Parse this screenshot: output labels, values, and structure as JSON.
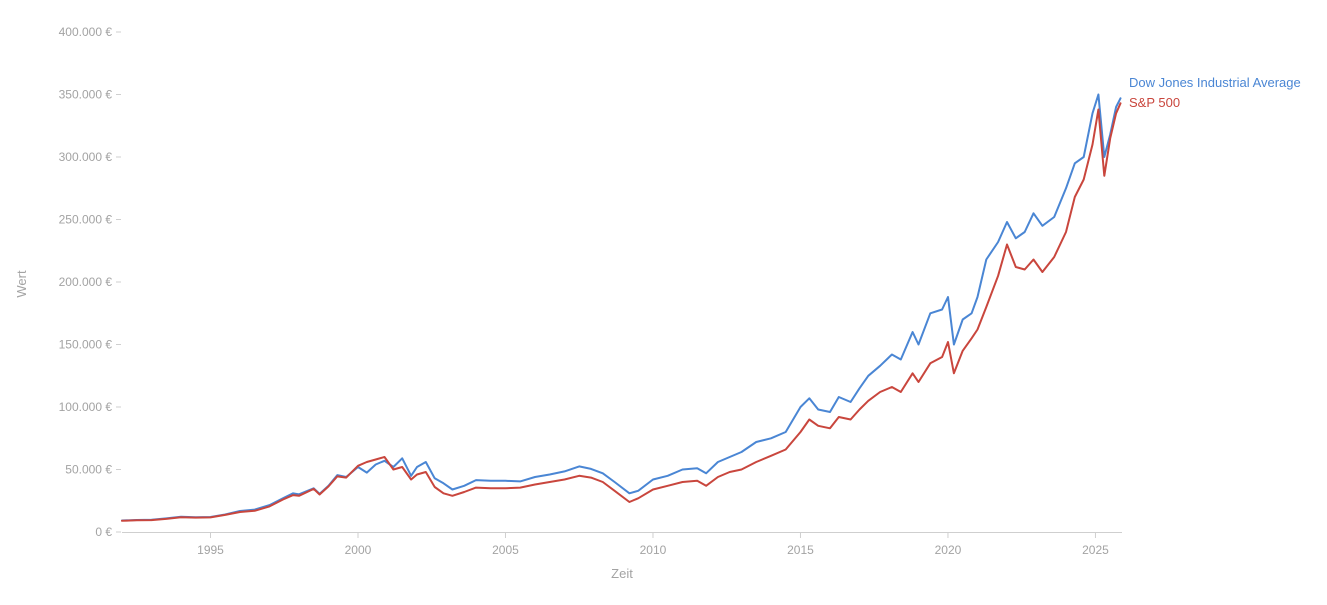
{
  "chart_data": {
    "type": "line",
    "title": "",
    "xlabel": "Zeit",
    "ylabel": "Wert",
    "xlim": [
      1992.0,
      2025.9
    ],
    "ylim": [
      0,
      400000
    ],
    "grid": false,
    "x_ticks": [
      1995,
      2000,
      2005,
      2010,
      2015,
      2020,
      2025
    ],
    "y_ticks": [
      0,
      50000,
      100000,
      150000,
      200000,
      250000,
      300000,
      350000,
      400000
    ],
    "y_tick_labels": [
      "0 €",
      "50.000 €",
      "100.000 €",
      "150.000 €",
      "200.000 €",
      "250.000 €",
      "300.000 €",
      "350.000 €",
      "400.000 €"
    ],
    "legend_placement": "right, at line ends",
    "series": [
      {
        "name": "Dow Jones Industrial Average",
        "color": "#4a86d4",
        "points": [
          [
            1992.0,
            9200
          ],
          [
            1992.5,
            9600
          ],
          [
            1993.0,
            9800
          ],
          [
            1993.5,
            10900
          ],
          [
            1994.0,
            12200
          ],
          [
            1994.5,
            11800
          ],
          [
            1995.0,
            12000
          ],
          [
            1995.5,
            14000
          ],
          [
            1996.0,
            16800
          ],
          [
            1996.5,
            17900
          ],
          [
            1997.0,
            21500
          ],
          [
            1997.5,
            27500
          ],
          [
            1997.8,
            31000
          ],
          [
            1998.0,
            30200
          ],
          [
            1998.5,
            35000
          ],
          [
            1998.7,
            30500
          ],
          [
            1999.0,
            37000
          ],
          [
            1999.3,
            45500
          ],
          [
            1999.6,
            44000
          ],
          [
            2000.0,
            52000
          ],
          [
            2000.3,
            47500
          ],
          [
            2000.6,
            54000
          ],
          [
            2000.9,
            57000
          ],
          [
            2001.2,
            52000
          ],
          [
            2001.5,
            59000
          ],
          [
            2001.8,
            45000
          ],
          [
            2002.0,
            52000
          ],
          [
            2002.3,
            56000
          ],
          [
            2002.6,
            43000
          ],
          [
            2002.9,
            39000
          ],
          [
            2003.2,
            34000
          ],
          [
            2003.6,
            37000
          ],
          [
            2004.0,
            41500
          ],
          [
            2004.5,
            41000
          ],
          [
            2005.0,
            41000
          ],
          [
            2005.5,
            40500
          ],
          [
            2006.0,
            44000
          ],
          [
            2006.5,
            46000
          ],
          [
            2007.0,
            48500
          ],
          [
            2007.5,
            52500
          ],
          [
            2007.9,
            50500
          ],
          [
            2008.3,
            47000
          ],
          [
            2008.7,
            40000
          ],
          [
            2009.2,
            31000
          ],
          [
            2009.5,
            33000
          ],
          [
            2010.0,
            42000
          ],
          [
            2010.5,
            45000
          ],
          [
            2011.0,
            50000
          ],
          [
            2011.5,
            51000
          ],
          [
            2011.8,
            47000
          ],
          [
            2012.2,
            56000
          ],
          [
            2012.6,
            60000
          ],
          [
            2013.0,
            64000
          ],
          [
            2013.5,
            72000
          ],
          [
            2014.0,
            75000
          ],
          [
            2014.5,
            80000
          ],
          [
            2015.0,
            100000
          ],
          [
            2015.3,
            107000
          ],
          [
            2015.6,
            98000
          ],
          [
            2016.0,
            96000
          ],
          [
            2016.3,
            108000
          ],
          [
            2016.7,
            104000
          ],
          [
            2017.0,
            115000
          ],
          [
            2017.3,
            125000
          ],
          [
            2017.7,
            133000
          ],
          [
            2018.1,
            142000
          ],
          [
            2018.4,
            138000
          ],
          [
            2018.8,
            160000
          ],
          [
            2019.0,
            150000
          ],
          [
            2019.4,
            175000
          ],
          [
            2019.8,
            178000
          ],
          [
            2020.0,
            188000
          ],
          [
            2020.2,
            150000
          ],
          [
            2020.5,
            170000
          ],
          [
            2020.8,
            175000
          ],
          [
            2021.0,
            188000
          ],
          [
            2021.3,
            218000
          ],
          [
            2021.7,
            232000
          ],
          [
            2022.0,
            248000
          ],
          [
            2022.3,
            235000
          ],
          [
            2022.6,
            240000
          ],
          [
            2022.9,
            255000
          ],
          [
            2023.2,
            245000
          ],
          [
            2023.6,
            252000
          ],
          [
            2024.0,
            275000
          ],
          [
            2024.3,
            295000
          ],
          [
            2024.6,
            300000
          ],
          [
            2024.9,
            335000
          ],
          [
            2025.1,
            350000
          ],
          [
            2025.3,
            300000
          ],
          [
            2025.5,
            318000
          ],
          [
            2025.7,
            340000
          ],
          [
            2025.85,
            347000
          ]
        ]
      },
      {
        "name": "S&P 500",
        "color": "#c9463d",
        "points": [
          [
            1992.0,
            9000
          ],
          [
            1992.5,
            9400
          ],
          [
            1993.0,
            9500
          ],
          [
            1993.5,
            10500
          ],
          [
            1994.0,
            11800
          ],
          [
            1994.5,
            11500
          ],
          [
            1995.0,
            11700
          ],
          [
            1995.5,
            13700
          ],
          [
            1996.0,
            16000
          ],
          [
            1996.5,
            17000
          ],
          [
            1997.0,
            20500
          ],
          [
            1997.5,
            26500
          ],
          [
            1997.8,
            29500
          ],
          [
            1998.0,
            29000
          ],
          [
            1998.5,
            34500
          ],
          [
            1998.7,
            30000
          ],
          [
            1999.0,
            36500
          ],
          [
            1999.3,
            44500
          ],
          [
            1999.6,
            43500
          ],
          [
            2000.0,
            53000
          ],
          [
            2000.3,
            56000
          ],
          [
            2000.6,
            58000
          ],
          [
            2000.9,
            60000
          ],
          [
            2001.2,
            50000
          ],
          [
            2001.5,
            52000
          ],
          [
            2001.8,
            42000
          ],
          [
            2002.0,
            46000
          ],
          [
            2002.3,
            48000
          ],
          [
            2002.6,
            36000
          ],
          [
            2002.9,
            31000
          ],
          [
            2003.2,
            29000
          ],
          [
            2003.6,
            32000
          ],
          [
            2004.0,
            35500
          ],
          [
            2004.5,
            35000
          ],
          [
            2005.0,
            35000
          ],
          [
            2005.5,
            35500
          ],
          [
            2006.0,
            38000
          ],
          [
            2006.5,
            40000
          ],
          [
            2007.0,
            42000
          ],
          [
            2007.5,
            45000
          ],
          [
            2007.9,
            43500
          ],
          [
            2008.3,
            40000
          ],
          [
            2008.7,
            33000
          ],
          [
            2009.2,
            24000
          ],
          [
            2009.5,
            27000
          ],
          [
            2010.0,
            34000
          ],
          [
            2010.5,
            37000
          ],
          [
            2011.0,
            40000
          ],
          [
            2011.5,
            41000
          ],
          [
            2011.8,
            37000
          ],
          [
            2012.2,
            44000
          ],
          [
            2012.6,
            48000
          ],
          [
            2013.0,
            50000
          ],
          [
            2013.5,
            56000
          ],
          [
            2014.0,
            61000
          ],
          [
            2014.5,
            66000
          ],
          [
            2015.0,
            80000
          ],
          [
            2015.3,
            90000
          ],
          [
            2015.6,
            85000
          ],
          [
            2016.0,
            83000
          ],
          [
            2016.3,
            92000
          ],
          [
            2016.7,
            90000
          ],
          [
            2017.0,
            98000
          ],
          [
            2017.3,
            105000
          ],
          [
            2017.7,
            112000
          ],
          [
            2018.1,
            116000
          ],
          [
            2018.4,
            112000
          ],
          [
            2018.8,
            127000
          ],
          [
            2019.0,
            120000
          ],
          [
            2019.4,
            135000
          ],
          [
            2019.8,
            140000
          ],
          [
            2020.0,
            152000
          ],
          [
            2020.2,
            127000
          ],
          [
            2020.5,
            145000
          ],
          [
            2020.8,
            155000
          ],
          [
            2021.0,
            162000
          ],
          [
            2021.3,
            180000
          ],
          [
            2021.7,
            205000
          ],
          [
            2022.0,
            230000
          ],
          [
            2022.3,
            212000
          ],
          [
            2022.6,
            210000
          ],
          [
            2022.9,
            218000
          ],
          [
            2023.2,
            208000
          ],
          [
            2023.6,
            220000
          ],
          [
            2024.0,
            240000
          ],
          [
            2024.3,
            268000
          ],
          [
            2024.6,
            282000
          ],
          [
            2024.9,
            310000
          ],
          [
            2025.1,
            338000
          ],
          [
            2025.3,
            285000
          ],
          [
            2025.5,
            315000
          ],
          [
            2025.7,
            335000
          ],
          [
            2025.85,
            343000
          ]
        ]
      }
    ]
  }
}
